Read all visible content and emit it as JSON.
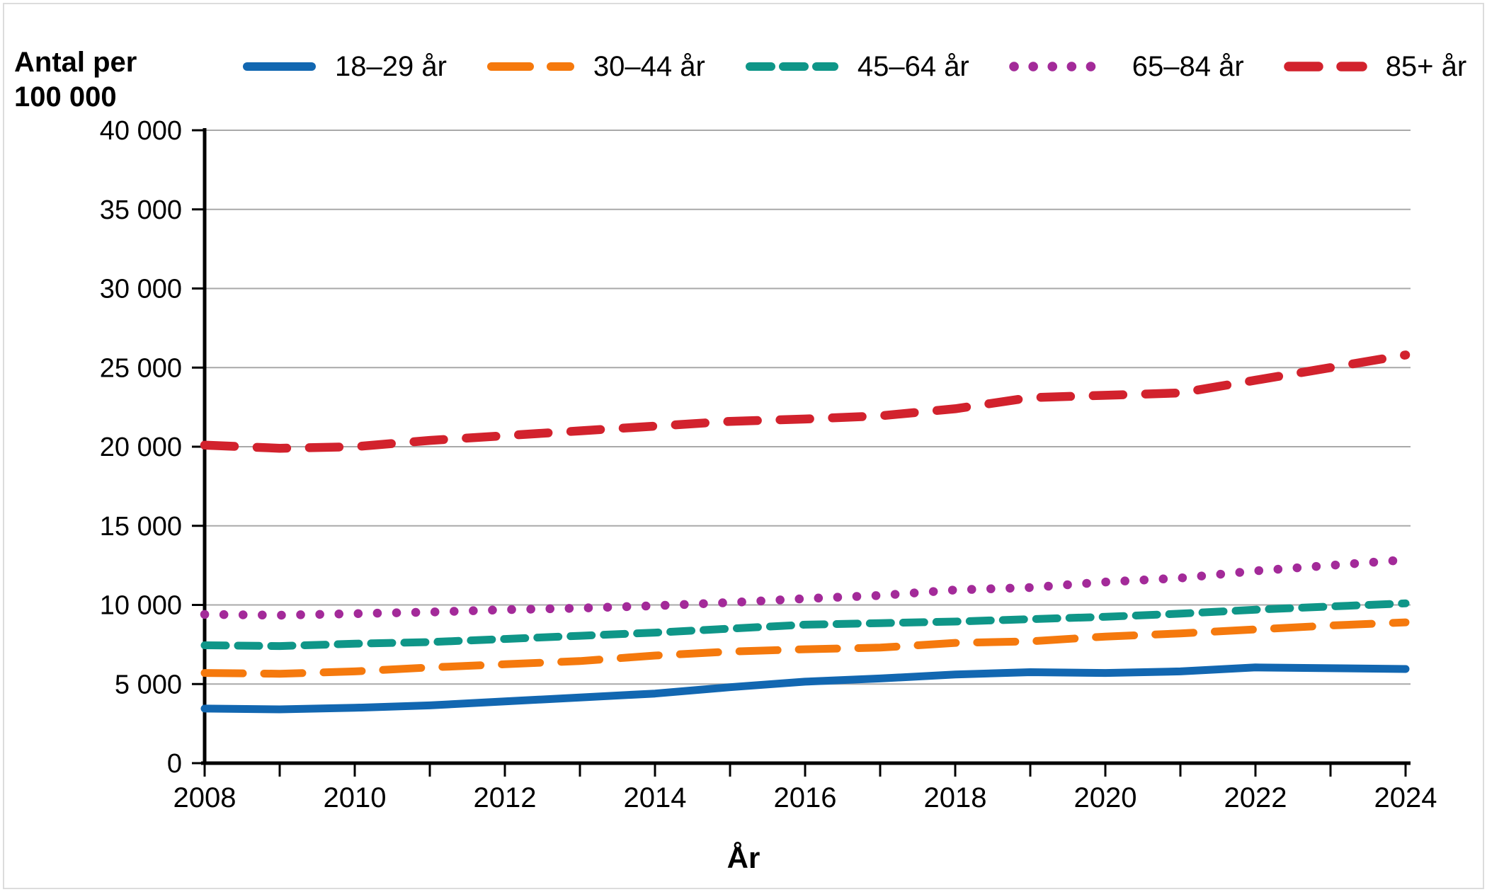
{
  "y_axis_title_line1": "Antal per",
  "y_axis_title_line2": "100 000",
  "x_axis_title": "År",
  "chart_data": {
    "type": "line",
    "title": "",
    "ylabel": "Antal per 100 000",
    "xlabel": "År",
    "grid": "horizontal",
    "legend_position": "top",
    "ylim": [
      0,
      40000
    ],
    "x_years": [
      2008,
      2009,
      2010,
      2011,
      2012,
      2013,
      2014,
      2015,
      2016,
      2017,
      2018,
      2019,
      2020,
      2021,
      2022,
      2023,
      2024
    ],
    "yticks": [
      {
        "value": 0,
        "label": "0"
      },
      {
        "value": 5000,
        "label": "5 000"
      },
      {
        "value": 10000,
        "label": "10 000"
      },
      {
        "value": 15000,
        "label": "15 000"
      },
      {
        "value": 20000,
        "label": "20 000"
      },
      {
        "value": 25000,
        "label": "25 000"
      },
      {
        "value": 30000,
        "label": "30 000"
      },
      {
        "value": 35000,
        "label": "35 000"
      },
      {
        "value": 40000,
        "label": "40 000"
      }
    ],
    "xticks_minor_years": [
      2008,
      2009,
      2010,
      2011,
      2012,
      2013,
      2014,
      2015,
      2016,
      2017,
      2018,
      2019,
      2020,
      2021,
      2022,
      2023,
      2024
    ],
    "xticks_labeled": [
      {
        "value": 2008,
        "label": "2008"
      },
      {
        "value": 2010,
        "label": "2010"
      },
      {
        "value": 2012,
        "label": "2012"
      },
      {
        "value": 2014,
        "label": "2014"
      },
      {
        "value": 2016,
        "label": "2016"
      },
      {
        "value": 2018,
        "label": "2018"
      },
      {
        "value": 2020,
        "label": "2020"
      },
      {
        "value": 2022,
        "label": "2022"
      },
      {
        "value": 2024,
        "label": "2024"
      }
    ],
    "series": [
      {
        "name": "18–29 år",
        "color": "#1267b1",
        "style": "solid",
        "values": [
          3450,
          3400,
          3500,
          3650,
          3900,
          4150,
          4400,
          4800,
          5150,
          5350,
          5600,
          5750,
          5700,
          5800,
          6050,
          6000,
          5950
        ]
      },
      {
        "name": "30–44 år",
        "color": "#f5790d",
        "style": "long-dash",
        "values": [
          5700,
          5650,
          5800,
          6050,
          6250,
          6450,
          6800,
          7050,
          7200,
          7300,
          7600,
          7700,
          8000,
          8200,
          8450,
          8700,
          8900
        ]
      },
      {
        "name": "45–64 år",
        "color": "#0f9688",
        "style": "dash",
        "values": [
          7450,
          7400,
          7550,
          7650,
          7850,
          8050,
          8250,
          8500,
          8750,
          8850,
          8950,
          9100,
          9250,
          9450,
          9700,
          9900,
          10100
        ]
      },
      {
        "name": "65–84 år",
        "color": "#a32a99",
        "style": "dotted",
        "values": [
          9400,
          9350,
          9450,
          9550,
          9700,
          9800,
          9950,
          10150,
          10400,
          10600,
          10950,
          11100,
          11450,
          11700,
          12150,
          12500,
          12850
        ]
      },
      {
        "name": "85+ år",
        "color": "#d2222d",
        "style": "wide-dash",
        "values": [
          20100,
          19900,
          20000,
          20400,
          20700,
          21000,
          21300,
          21600,
          21750,
          21950,
          22400,
          23100,
          23250,
          23400,
          24200,
          25000,
          25800
        ]
      }
    ]
  }
}
